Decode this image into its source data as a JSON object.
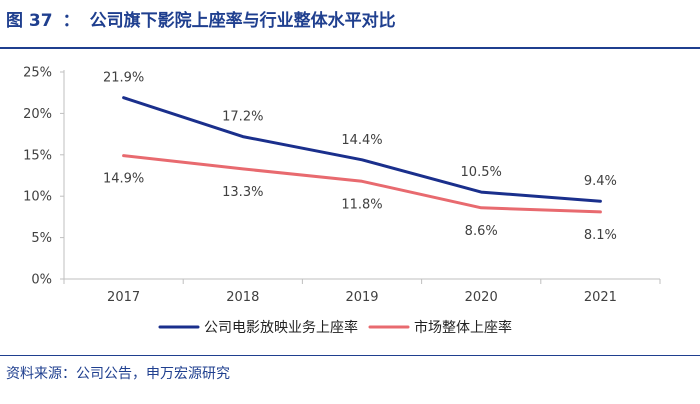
{
  "figure": {
    "label": "图 37",
    "separator": "：",
    "title": "公司旗下影院上座率与行业整体水平对比",
    "source": "资料来源：公司公告，申万宏源研究"
  },
  "chart_data": {
    "type": "line",
    "title": "公司旗下影院上座率与行业整体水平对比",
    "x": [
      "2017",
      "2018",
      "2019",
      "2020",
      "2021"
    ],
    "ylim": [
      0,
      25
    ],
    "yticks": [
      0,
      5,
      10,
      15,
      20,
      25
    ],
    "ytick_labels": [
      "0%",
      "5%",
      "10%",
      "15%",
      "20%",
      "25%"
    ],
    "grid": false,
    "legend": "bottom",
    "series": [
      {
        "name": "公司电影放映业务上座率",
        "color": "#1a2f8c",
        "values": [
          21.9,
          17.2,
          14.4,
          10.5,
          9.4
        ],
        "labels": [
          "21.9%",
          "17.2%",
          "14.4%",
          "10.5%",
          "9.4%"
        ],
        "label_position": "above"
      },
      {
        "name": "市场整体上座率",
        "color": "#e86a6f",
        "values": [
          14.9,
          13.3,
          11.8,
          8.6,
          8.1
        ],
        "labels": [
          "14.9%",
          "13.3%",
          "11.8%",
          "8.6%",
          "8.1%"
        ],
        "label_position": "below"
      }
    ]
  }
}
